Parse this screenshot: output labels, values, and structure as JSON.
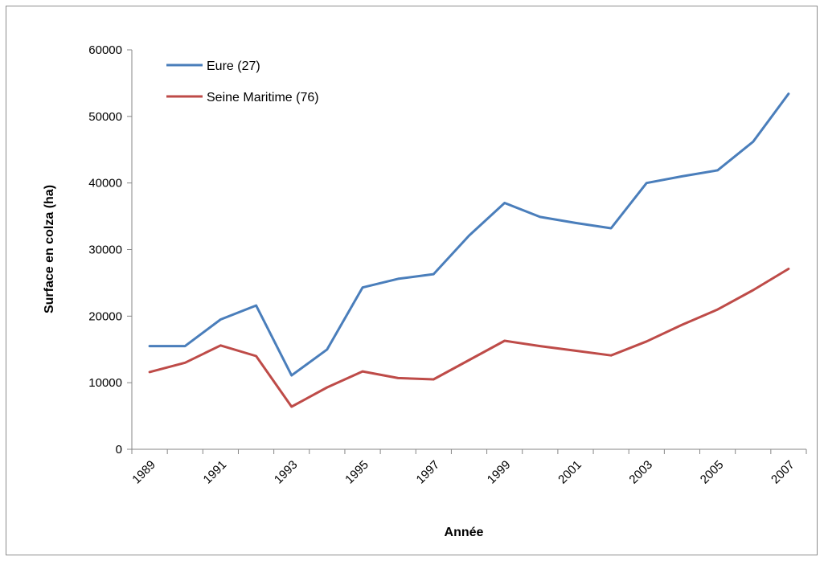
{
  "chart_data": {
    "type": "line",
    "xlabel": "Année",
    "ylabel": "Surface en colza (ha)",
    "ylim": [
      0,
      60000
    ],
    "yticks": [
      0,
      10000,
      20000,
      30000,
      40000,
      50000,
      60000
    ],
    "xticks": [
      "1989",
      "1991",
      "1993",
      "1995",
      "1997",
      "1999",
      "2001",
      "2003",
      "2005",
      "2007"
    ],
    "x": [
      1989,
      1990,
      1991,
      1992,
      1993,
      1994,
      1995,
      1996,
      1997,
      1998,
      1999,
      2000,
      2001,
      2002,
      2003,
      2004,
      2005,
      2006,
      2007
    ],
    "grid": false,
    "legend_position": "top-left",
    "series": [
      {
        "name": "Eure (27)",
        "color": "#4a7ebb",
        "values": [
          15500,
          15500,
          19500,
          21600,
          11100,
          15000,
          24300,
          25600,
          26300,
          32100,
          37000,
          34900,
          34000,
          33200,
          40000,
          41000,
          41900,
          46200,
          53400
        ]
      },
      {
        "name": "Seine Maritime (76)",
        "color": "#be4b48",
        "values": [
          11600,
          13000,
          15600,
          14000,
          6400,
          9300,
          11700,
          10700,
          10500,
          13400,
          16300,
          15500,
          14800,
          14100,
          16200,
          18700,
          21000,
          23900,
          27100
        ]
      }
    ]
  }
}
